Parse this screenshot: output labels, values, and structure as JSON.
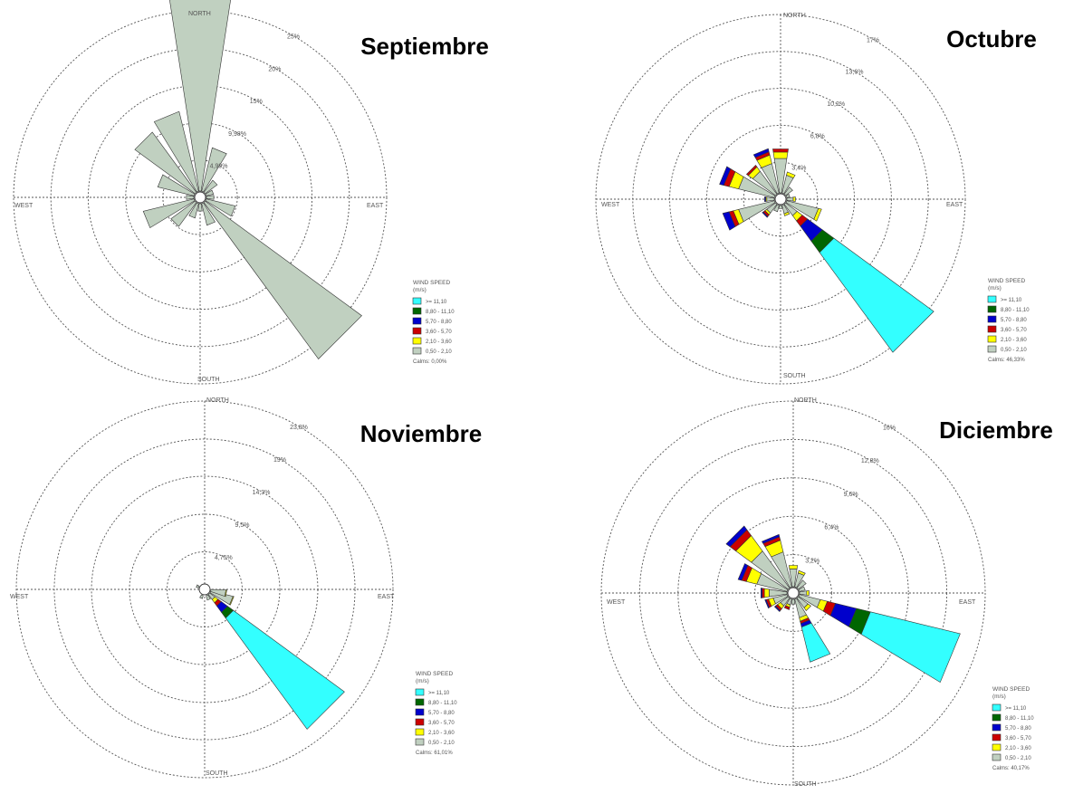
{
  "legend": {
    "title_line1": "WIND SPEED",
    "title_line2": "(m/s)",
    "classes": [
      {
        "label": ">= 11,10",
        "color": "#33ffff"
      },
      {
        "label": "8,80 - 11,10",
        "color": "#006600"
      },
      {
        "label": "5,70 - 8,80",
        "color": "#0000cc"
      },
      {
        "label": "3,60 - 5,70",
        "color": "#cc0000"
      },
      {
        "label": "2,10 - 3,60",
        "color": "#ffff00"
      },
      {
        "label": "0,50 - 2,10",
        "color": "#c0d0c0"
      }
    ]
  },
  "directions": {
    "north": "NORTH",
    "south": "SOUTH",
    "east": "EAST",
    "west": "WEST"
  },
  "chart_data": [
    {
      "type": "windrose",
      "title": "Septiembre",
      "rings": [
        4.99,
        9.98,
        15,
        20,
        25
      ],
      "ring_labels": [
        "4,99%",
        "9,98%",
        "15%",
        "20%",
        "25%"
      ],
      "calms": "Calms: 0,00%",
      "petals": [
        {
          "dir": 0,
          "segments": [
            0,
            0,
            0,
            0,
            0,
            34
          ]
        },
        {
          "dir": 22.5,
          "segments": [
            0,
            0,
            0,
            0,
            0,
            6
          ]
        },
        {
          "dir": 45,
          "segments": [
            0,
            0,
            0,
            0,
            0,
            2
          ]
        },
        {
          "dir": 67.5,
          "segments": [
            0,
            0,
            0,
            0,
            0,
            1
          ]
        },
        {
          "dir": 90,
          "segments": [
            0,
            0,
            0,
            0,
            0,
            1
          ]
        },
        {
          "dir": 112.5,
          "segments": [
            0,
            0,
            0,
            0,
            0,
            4
          ]
        },
        {
          "dir": 135,
          "segments": [
            0,
            0,
            0,
            0,
            0,
            26
          ]
        },
        {
          "dir": 157.5,
          "segments": [
            0,
            0,
            0,
            0,
            0,
            3
          ]
        },
        {
          "dir": 180,
          "segments": [
            0,
            0,
            0,
            0,
            0,
            1
          ]
        },
        {
          "dir": 202.5,
          "segments": [
            0,
            0,
            0,
            0,
            0,
            2
          ]
        },
        {
          "dir": 225,
          "segments": [
            0,
            0,
            0,
            0,
            0,
            4
          ]
        },
        {
          "dir": 247.5,
          "segments": [
            0,
            0,
            0,
            0,
            0,
            7
          ]
        },
        {
          "dir": 270,
          "segments": [
            0,
            0,
            0,
            0,
            0,
            1
          ]
        },
        {
          "dir": 292.5,
          "segments": [
            0,
            0,
            0,
            0,
            0,
            5
          ]
        },
        {
          "dir": 315,
          "segments": [
            0,
            0,
            0,
            0,
            0,
            10
          ]
        },
        {
          "dir": 337.5,
          "segments": [
            0,
            0,
            0,
            0,
            0,
            11
          ]
        }
      ]
    },
    {
      "type": "windrose",
      "title": "Octubre",
      "rings": [
        3.4,
        6.8,
        10.2,
        13.6,
        17
      ],
      "ring_labels": [
        "3,4%",
        "6,8%",
        "10,2%",
        "13,6%",
        "17%"
      ],
      "calms": "Calms: 46,33%",
      "petals": [
        {
          "dir": 0,
          "segments": [
            0,
            0,
            0,
            0.3,
            0.6,
            3.2
          ]
        },
        {
          "dir": 22.5,
          "segments": [
            0,
            0,
            0,
            0,
            0.3,
            1.7
          ]
        },
        {
          "dir": 45,
          "segments": [
            0,
            0,
            0,
            0,
            0,
            0.8
          ]
        },
        {
          "dir": 67.5,
          "segments": [
            0,
            0,
            0,
            0,
            0,
            0.3
          ]
        },
        {
          "dir": 90,
          "segments": [
            0,
            0,
            0,
            0,
            0.2,
            0.6
          ]
        },
        {
          "dir": 112.5,
          "segments": [
            0,
            0,
            0,
            0,
            0.3,
            3.0
          ]
        },
        {
          "dir": 135,
          "segments": [
            11.4,
            1.3,
            1.7,
            0.6,
            0.6,
            1.3
          ]
        },
        {
          "dir": 157.5,
          "segments": [
            0,
            0,
            0,
            0,
            0.2,
            0.8
          ]
        },
        {
          "dir": 180,
          "segments": [
            0,
            0,
            0,
            0,
            0,
            0.3
          ]
        },
        {
          "dir": 202.5,
          "segments": [
            0,
            0,
            0,
            0,
            0,
            0.6
          ]
        },
        {
          "dir": 225,
          "segments": [
            0,
            0,
            0.1,
            0.2,
            0.2,
            1.0
          ]
        },
        {
          "dir": 247.5,
          "segments": [
            0,
            0,
            0.6,
            0.4,
            0.5,
            3.4
          ]
        },
        {
          "dir": 270,
          "segments": [
            0,
            0,
            0.1,
            0,
            0.1,
            0.7
          ]
        },
        {
          "dir": 292.5,
          "segments": [
            0,
            0,
            0.4,
            0.5,
            0.9,
            3.4
          ]
        },
        {
          "dir": 315,
          "segments": [
            0,
            0,
            0,
            0.2,
            0.5,
            2.6
          ]
        },
        {
          "dir": 337.5,
          "segments": [
            0,
            0,
            0.3,
            0.3,
            0.8,
            2.8
          ]
        }
      ]
    },
    {
      "type": "windrose",
      "title": "Noviembre",
      "rings": [
        4.75,
        9.5,
        14.3,
        19,
        23.8
      ],
      "ring_labels": [
        "4,75%",
        "9,5%",
        "14,3%",
        "19%",
        "23,8%"
      ],
      "calms": "Calms: 61,01%",
      "petals": [
        {
          "dir": 112.5,
          "segments": [
            0,
            0,
            0,
            0,
            0.1,
            2.9
          ]
        },
        {
          "dir": 100,
          "segments": [
            0,
            0,
            0,
            0,
            0.1,
            1.9
          ]
        },
        {
          "dir": 135,
          "segments": [
            17.4,
            0.9,
            1.0,
            0.5,
            0.5,
            0.8
          ]
        },
        {
          "dir": 157.5,
          "segments": [
            0,
            0,
            0,
            0,
            0,
            0.6
          ]
        },
        {
          "dir": 202.5,
          "segments": [
            0,
            0,
            0,
            0,
            0,
            0.4
          ]
        },
        {
          "dir": 292.5,
          "segments": [
            0,
            0,
            0,
            0,
            0,
            0.3
          ]
        }
      ]
    },
    {
      "type": "windrose",
      "title": "Diciembre",
      "rings": [
        3.2,
        6.4,
        9.6,
        12.8,
        16
      ],
      "ring_labels": [
        "3,2%",
        "6,4%",
        "9,6%",
        "12,8%",
        "16%"
      ],
      "calms": "Calms: 40,17%",
      "petals": [
        {
          "dir": 0,
          "segments": [
            0,
            0,
            0,
            0,
            0.3,
            1.5
          ]
        },
        {
          "dir": 22.5,
          "segments": [
            0,
            0,
            0,
            0,
            0.2,
            1.2
          ]
        },
        {
          "dir": 45,
          "segments": [
            0,
            0,
            0,
            0,
            0,
            0.8
          ]
        },
        {
          "dir": 67.5,
          "segments": [
            0,
            0,
            0,
            0,
            0,
            0.5
          ]
        },
        {
          "dir": 90,
          "segments": [
            0,
            0,
            0,
            0,
            0.2,
            0.6
          ]
        },
        {
          "dir": 112.5,
          "segments": [
            7.7,
            1.2,
            1.8,
            0.7,
            0.6,
            1.8
          ]
        },
        {
          "dir": 135,
          "segments": [
            0,
            0,
            0,
            0,
            0.3,
            1.0
          ]
        },
        {
          "dir": 157.5,
          "segments": [
            3.0,
            0,
            0.3,
            0.2,
            0.3,
            1.6
          ]
        },
        {
          "dir": 180,
          "segments": [
            0,
            0,
            0,
            0,
            0,
            0.4
          ]
        },
        {
          "dir": 202.5,
          "segments": [
            0,
            0,
            0,
            0.2,
            0.2,
            0.5
          ]
        },
        {
          "dir": 225,
          "segments": [
            0,
            0,
            0.1,
            0.2,
            0.3,
            0.8
          ]
        },
        {
          "dir": 247.5,
          "segments": [
            0,
            0,
            0.1,
            0.2,
            0.4,
            1.2
          ]
        },
        {
          "dir": 270,
          "segments": [
            0,
            0,
            0.1,
            0.2,
            0.4,
            1.5
          ]
        },
        {
          "dir": 292.5,
          "segments": [
            0,
            0,
            0.3,
            0.4,
            0.9,
            2.6
          ]
        },
        {
          "dir": 315,
          "segments": [
            0,
            0,
            0.4,
            0.6,
            1.6,
            3.8
          ]
        },
        {
          "dir": 337.5,
          "segments": [
            0,
            0,
            0.2,
            0.3,
            1.0,
            3.0
          ]
        }
      ]
    }
  ]
}
